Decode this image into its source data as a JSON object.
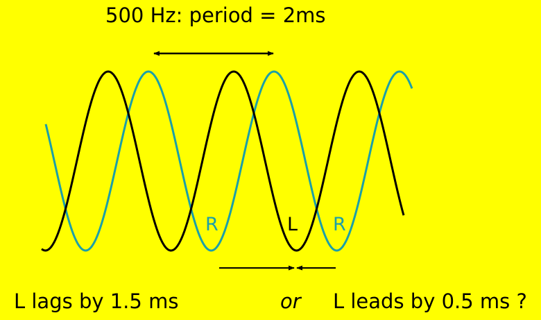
{
  "title": "500 Hz:  period = 2ms",
  "waves": {
    "left": {
      "label": "L",
      "color": "#000000"
    },
    "right": {
      "label": "R",
      "color": "#1c9fa8"
    }
  },
  "captions": {
    "lag": "L lags by 1.5 ms",
    "or": "or",
    "lead": "L leads by 0.5 ms ?"
  }
}
